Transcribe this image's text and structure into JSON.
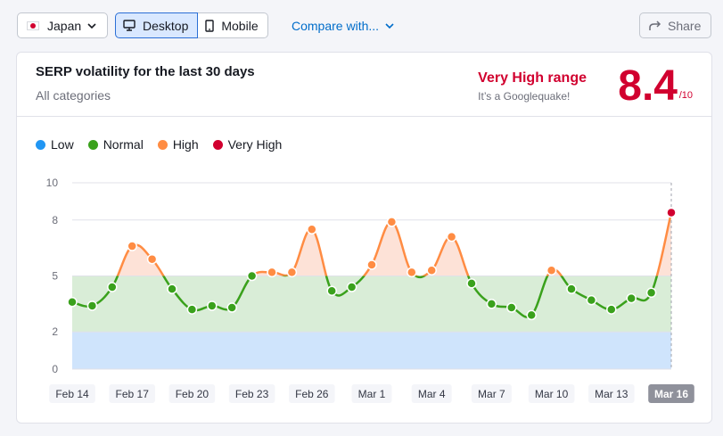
{
  "toolbar": {
    "country": "Japan",
    "device_desktop": "Desktop",
    "device_mobile": "Mobile",
    "compare": "Compare with...",
    "share": "Share"
  },
  "card": {
    "title": "SERP volatility for the last 30 days",
    "subtitle": "All categories",
    "range_label": "Very High range",
    "range_sub": "It’s a Googlequake!",
    "score": "8.4",
    "score_max": "/10"
  },
  "legend": [
    {
      "label": "Low",
      "color": "#2196f3"
    },
    {
      "label": "Normal",
      "color": "#3aa11c"
    },
    {
      "label": "High",
      "color": "#ff8c43"
    },
    {
      "label": "Very High",
      "color": "#d1002f"
    }
  ],
  "colors": {
    "low": "#2196f3",
    "normal": "#3aa11c",
    "high": "#ff8c43",
    "very_high": "#d1002f",
    "band_low": "#cfe4fc",
    "band_normal": "#d9edd7",
    "band_high": "#fde2d7"
  },
  "chart_data": {
    "type": "line",
    "y_ticks": [
      0,
      2,
      5,
      8,
      10
    ],
    "ylim": [
      0,
      10
    ],
    "thresholds": {
      "low": 2,
      "normal": 5,
      "high": 8
    },
    "x_labels": [
      "Feb 14",
      "Feb 17",
      "Feb 20",
      "Feb 23",
      "Feb 26",
      "Mar 1",
      "Mar 4",
      "Mar 7",
      "Mar 10",
      "Mar 13",
      "Mar 16"
    ],
    "dates": [
      "Feb 14",
      "Feb 15",
      "Feb 16",
      "Feb 17",
      "Feb 18",
      "Feb 19",
      "Feb 20",
      "Feb 21",
      "Feb 22",
      "Feb 23",
      "Feb 24",
      "Feb 25",
      "Feb 26",
      "Feb 27",
      "Feb 28",
      "Mar 1",
      "Mar 2",
      "Mar 3",
      "Mar 4",
      "Mar 5",
      "Mar 6",
      "Mar 7",
      "Mar 8",
      "Mar 9",
      "Mar 10",
      "Mar 11",
      "Mar 12",
      "Mar 13",
      "Mar 14",
      "Mar 15",
      "Mar 16"
    ],
    "values": [
      3.6,
      3.4,
      4.4,
      6.6,
      5.9,
      4.3,
      3.2,
      3.4,
      3.3,
      5.0,
      5.2,
      5.2,
      7.5,
      4.2,
      4.4,
      5.6,
      7.9,
      5.2,
      5.3,
      7.1,
      4.6,
      3.5,
      3.3,
      2.9,
      5.3,
      4.3,
      3.7,
      3.2,
      3.8,
      4.1,
      8.4
    ],
    "highlight_label": "Mar 16"
  }
}
